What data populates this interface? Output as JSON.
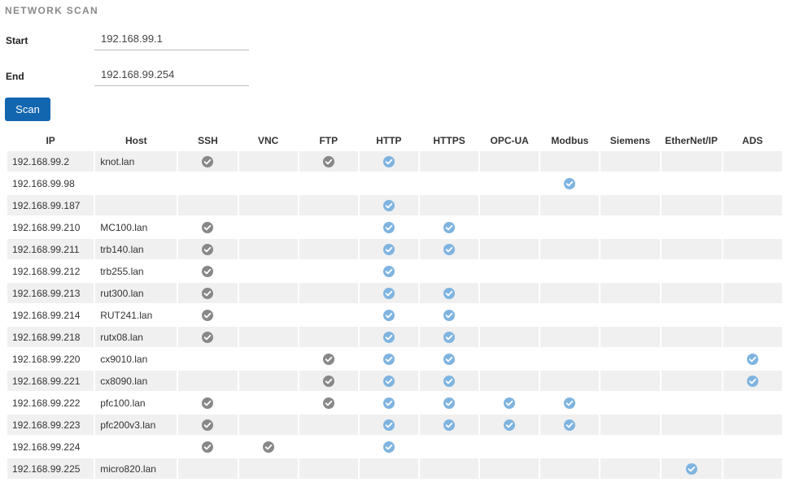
{
  "title": "NETWORK SCAN",
  "form": {
    "start_label": "Start",
    "start_value": "192.168.99.1",
    "end_label": "End",
    "end_value": "192.168.99.254",
    "scan_label": "Scan"
  },
  "colors": {
    "accent": "#1266b0",
    "check_gray": "#888888",
    "check_blue": "#7fb4e0"
  },
  "table": {
    "columns": [
      "IP",
      "Host",
      "SSH",
      "VNC",
      "FTP",
      "HTTP",
      "HTTPS",
      "OPC-UA",
      "Modbus",
      "Siemens",
      "EtherNet/IP",
      "ADS"
    ],
    "rows": [
      {
        "ip": "192.168.99.2",
        "host": "knot.lan",
        "ssh": "gray",
        "vnc": "",
        "ftp": "gray",
        "http": "blue",
        "https": "",
        "opcua": "",
        "modbus": "",
        "siemens": "",
        "ethernetip": "",
        "ads": ""
      },
      {
        "ip": "192.168.99.98",
        "host": "",
        "ssh": "",
        "vnc": "",
        "ftp": "",
        "http": "",
        "https": "",
        "opcua": "",
        "modbus": "blue",
        "siemens": "",
        "ethernetip": "",
        "ads": ""
      },
      {
        "ip": "192.168.99.187",
        "host": "",
        "ssh": "",
        "vnc": "",
        "ftp": "",
        "http": "blue",
        "https": "",
        "opcua": "",
        "modbus": "",
        "siemens": "",
        "ethernetip": "",
        "ads": ""
      },
      {
        "ip": "192.168.99.210",
        "host": "MC100.lan",
        "ssh": "gray",
        "vnc": "",
        "ftp": "",
        "http": "blue",
        "https": "blue",
        "opcua": "",
        "modbus": "",
        "siemens": "",
        "ethernetip": "",
        "ads": ""
      },
      {
        "ip": "192.168.99.211",
        "host": "trb140.lan",
        "ssh": "gray",
        "vnc": "",
        "ftp": "",
        "http": "blue",
        "https": "blue",
        "opcua": "",
        "modbus": "",
        "siemens": "",
        "ethernetip": "",
        "ads": ""
      },
      {
        "ip": "192.168.99.212",
        "host": "trb255.lan",
        "ssh": "gray",
        "vnc": "",
        "ftp": "",
        "http": "blue",
        "https": "",
        "opcua": "",
        "modbus": "",
        "siemens": "",
        "ethernetip": "",
        "ads": ""
      },
      {
        "ip": "192.168.99.213",
        "host": "rut300.lan",
        "ssh": "gray",
        "vnc": "",
        "ftp": "",
        "http": "blue",
        "https": "blue",
        "opcua": "",
        "modbus": "",
        "siemens": "",
        "ethernetip": "",
        "ads": ""
      },
      {
        "ip": "192.168.99.214",
        "host": "RUT241.lan",
        "ssh": "gray",
        "vnc": "",
        "ftp": "",
        "http": "blue",
        "https": "blue",
        "opcua": "",
        "modbus": "",
        "siemens": "",
        "ethernetip": "",
        "ads": ""
      },
      {
        "ip": "192.168.99.218",
        "host": "rutx08.lan",
        "ssh": "gray",
        "vnc": "",
        "ftp": "",
        "http": "blue",
        "https": "blue",
        "opcua": "",
        "modbus": "",
        "siemens": "",
        "ethernetip": "",
        "ads": ""
      },
      {
        "ip": "192.168.99.220",
        "host": "cx9010.lan",
        "ssh": "",
        "vnc": "",
        "ftp": "gray",
        "http": "blue",
        "https": "blue",
        "opcua": "",
        "modbus": "",
        "siemens": "",
        "ethernetip": "",
        "ads": "blue"
      },
      {
        "ip": "192.168.99.221",
        "host": "cx8090.lan",
        "ssh": "",
        "vnc": "",
        "ftp": "gray",
        "http": "blue",
        "https": "blue",
        "opcua": "",
        "modbus": "",
        "siemens": "",
        "ethernetip": "",
        "ads": "blue"
      },
      {
        "ip": "192.168.99.222",
        "host": "pfc100.lan",
        "ssh": "gray",
        "vnc": "",
        "ftp": "gray",
        "http": "blue",
        "https": "blue",
        "opcua": "blue",
        "modbus": "blue",
        "siemens": "",
        "ethernetip": "",
        "ads": ""
      },
      {
        "ip": "192.168.99.223",
        "host": "pfc200v3.lan",
        "ssh": "gray",
        "vnc": "",
        "ftp": "",
        "http": "blue",
        "https": "blue",
        "opcua": "blue",
        "modbus": "blue",
        "siemens": "",
        "ethernetip": "",
        "ads": ""
      },
      {
        "ip": "192.168.99.224",
        "host": "",
        "ssh": "gray",
        "vnc": "gray",
        "ftp": "",
        "http": "blue",
        "https": "",
        "opcua": "",
        "modbus": "",
        "siemens": "",
        "ethernetip": "",
        "ads": ""
      },
      {
        "ip": "192.168.99.225",
        "host": "micro820.lan",
        "ssh": "",
        "vnc": "",
        "ftp": "",
        "http": "",
        "https": "",
        "opcua": "",
        "modbus": "",
        "siemens": "",
        "ethernetip": "blue",
        "ads": ""
      }
    ]
  }
}
